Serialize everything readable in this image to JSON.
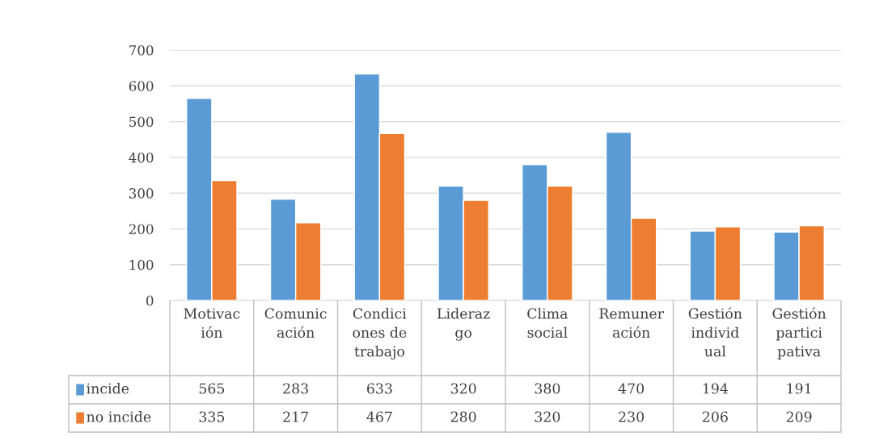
{
  "chart_data": {
    "type": "bar",
    "categories": [
      "Motivación",
      "Comunicación",
      "Condiciones de trabajo",
      "Liderazgo",
      "Clima social",
      "Remuneración",
      "Gestión individual",
      "Gestión participativa"
    ],
    "series": [
      {
        "name": "incide",
        "color": "#5b9bd5",
        "values": [
          565,
          283,
          633,
          320,
          380,
          470,
          194,
          191
        ]
      },
      {
        "name": "no incide",
        "color": "#ed7d31",
        "values": [
          335,
          217,
          467,
          280,
          320,
          230,
          206,
          209
        ]
      }
    ],
    "ylim": [
      0,
      700
    ],
    "yticks": [
      0,
      100,
      200,
      300,
      400,
      500,
      600,
      700
    ],
    "grid": "y",
    "data_labels": true,
    "legend": "bottom"
  }
}
